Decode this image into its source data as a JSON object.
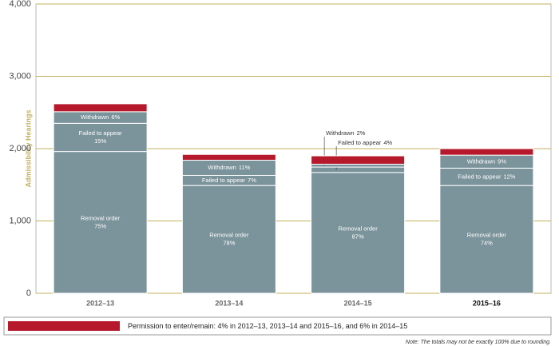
{
  "chart_data": {
    "type": "stacked-bar",
    "y_label": "Admissibility Hearings",
    "categories": [
      "2012–13",
      "2013–14",
      "2014–15",
      "2015–16"
    ],
    "series": [
      {
        "name": "Removal order",
        "color": "#7b939b",
        "values": [
          1960,
          1490,
          1670,
          1490
        ],
        "share_labels": [
          "75%",
          "78%",
          "87%",
          "74%"
        ]
      },
      {
        "name": "Failed to appear",
        "color": "#7b939b",
        "values": [
          390,
          140,
          75,
          240
        ],
        "share_labels": [
          "15%",
          "7%",
          "4%",
          "12%"
        ]
      },
      {
        "name": "Withdrawn",
        "color": "#7b939b",
        "values": [
          160,
          210,
          40,
          180
        ],
        "share_labels": [
          "6%",
          "11%",
          "2%",
          "9%"
        ]
      },
      {
        "name": "Permission to enter/remain: 4% in 2012–13, 2013–14 and 2015–16, and 6% in 2014–15",
        "color": "#b5192b",
        "values": [
          110,
          80,
          115,
          90
        ]
      }
    ],
    "ylim": [
      0,
      4000
    ],
    "yticks": [
      0,
      {
        "value": 1000,
        "label": "1,000"
      },
      {
        "value": 2000,
        "label": "2,000"
      },
      {
        "value": 3000,
        "label": "3,000"
      },
      {
        "value": 4000,
        "label": "4,000"
      }
    ],
    "grid": true,
    "note": "Note: The totals may not be exactly 100% due to rounding."
  }
}
